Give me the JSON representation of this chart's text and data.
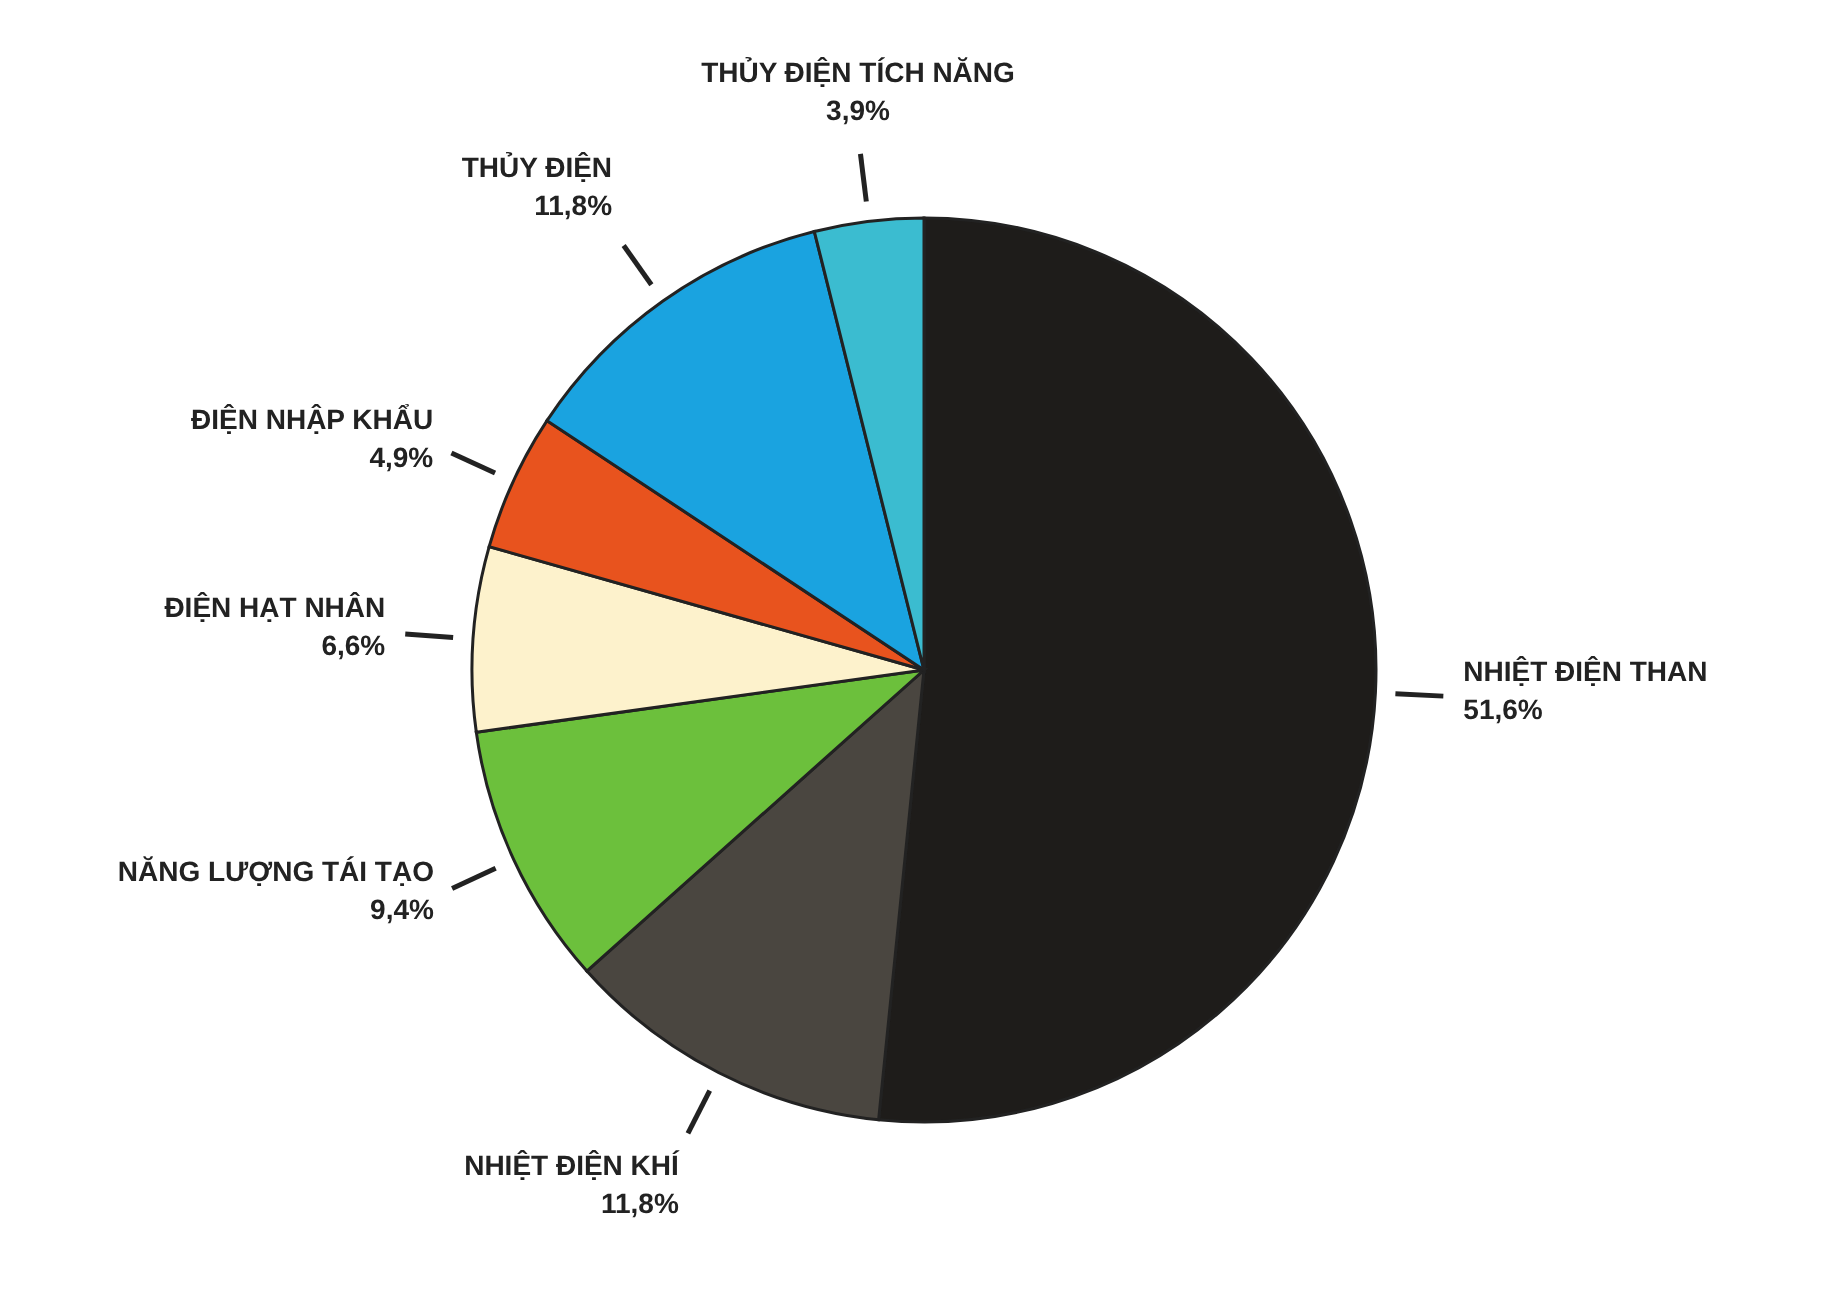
{
  "chart_data": {
    "type": "pie",
    "categories": [
      "NHIỆT ĐIỆN THAN",
      "NHIỆT ĐIỆN KHÍ",
      "NĂNG LƯỢNG TÁI TẠO",
      "ĐIỆN HẠT NHÂN",
      "ĐIỆN NHẬP KHẨU",
      "THỦY ĐIỆN",
      "THỦY ĐIỆN TÍCH NĂNG"
    ],
    "values": [
      51.6,
      11.8,
      9.4,
      6.6,
      4.9,
      11.8,
      3.9
    ],
    "colors": [
      "#1e1c1a",
      "#4a4640",
      "#6cc03c",
      "#fdf2cc",
      "#e8531e",
      "#1aa3e0",
      "#3bbcd0"
    ],
    "value_labels": [
      "51,6%",
      "11,8%",
      "9,4%",
      "6,6%",
      "4,9%",
      "11,8%",
      "3,9%"
    ]
  }
}
